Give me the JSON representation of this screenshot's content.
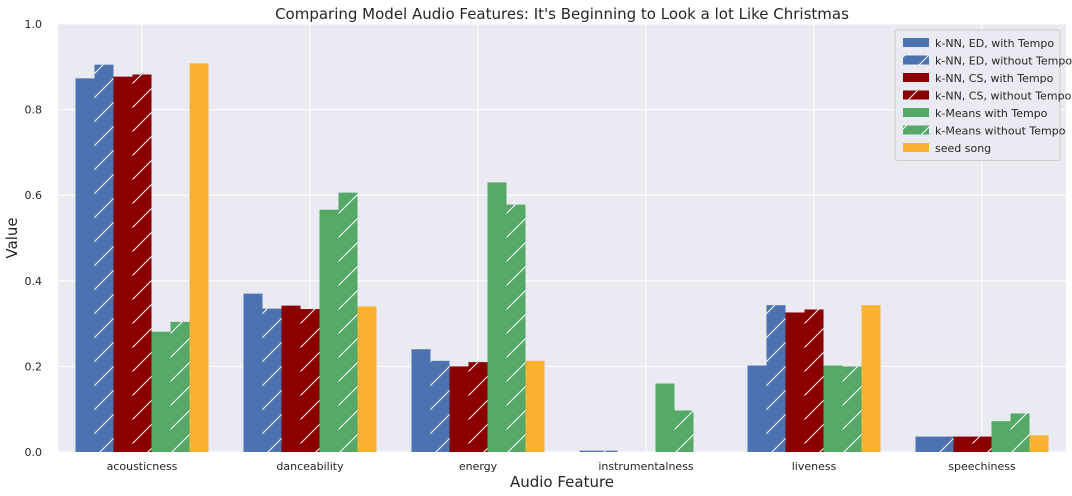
{
  "chart_data": {
    "type": "bar",
    "title": "Comparing Model Audio Features: It's Beginning to Look a lot Like Christmas",
    "xlabel": "Audio Feature",
    "ylabel": "Value",
    "ylim": [
      0,
      1.0
    ],
    "yticks": [
      "0.0",
      "0.2",
      "0.4",
      "0.6",
      "0.8",
      "1.0"
    ],
    "grid": true,
    "legend_position": "top-right",
    "background": "#eaeaf2",
    "categories": [
      "acousticness",
      "danceability",
      "energy",
      "instrumentalness",
      "liveness",
      "speechiness"
    ],
    "series": [
      {
        "name": "k-NN, ED, with Tempo",
        "color": "#4c72b0",
        "hatch": false,
        "values": [
          0.873,
          0.37,
          0.24,
          0.003,
          0.202,
          0.036
        ]
      },
      {
        "name": "k-NN, ED, without Tempo",
        "color": "#4c72b0",
        "hatch": true,
        "values": [
          0.905,
          0.335,
          0.213,
          0.003,
          0.343,
          0.036
        ]
      },
      {
        "name": "k-NN, CS, with Tempo",
        "color": "#8b0000",
        "hatch": false,
        "values": [
          0.877,
          0.342,
          0.2,
          0.0,
          0.326,
          0.036
        ]
      },
      {
        "name": "k-NN, CS, without Tempo",
        "color": "#8b0000",
        "hatch": true,
        "values": [
          0.882,
          0.334,
          0.21,
          0.0,
          0.333,
          0.036
        ]
      },
      {
        "name": "k-Means with Tempo",
        "color": "#55a868",
        "hatch": false,
        "values": [
          0.281,
          0.566,
          0.63,
          0.16,
          0.202,
          0.072
        ]
      },
      {
        "name": "k-Means without Tempo",
        "color": "#55a868",
        "hatch": true,
        "values": [
          0.304,
          0.606,
          0.578,
          0.097,
          0.2,
          0.09
        ]
      },
      {
        "name": "seed song",
        "color": "#fbb131",
        "hatch": false,
        "values": [
          0.908,
          0.34,
          0.213,
          0.0,
          0.343,
          0.039
        ]
      }
    ]
  }
}
